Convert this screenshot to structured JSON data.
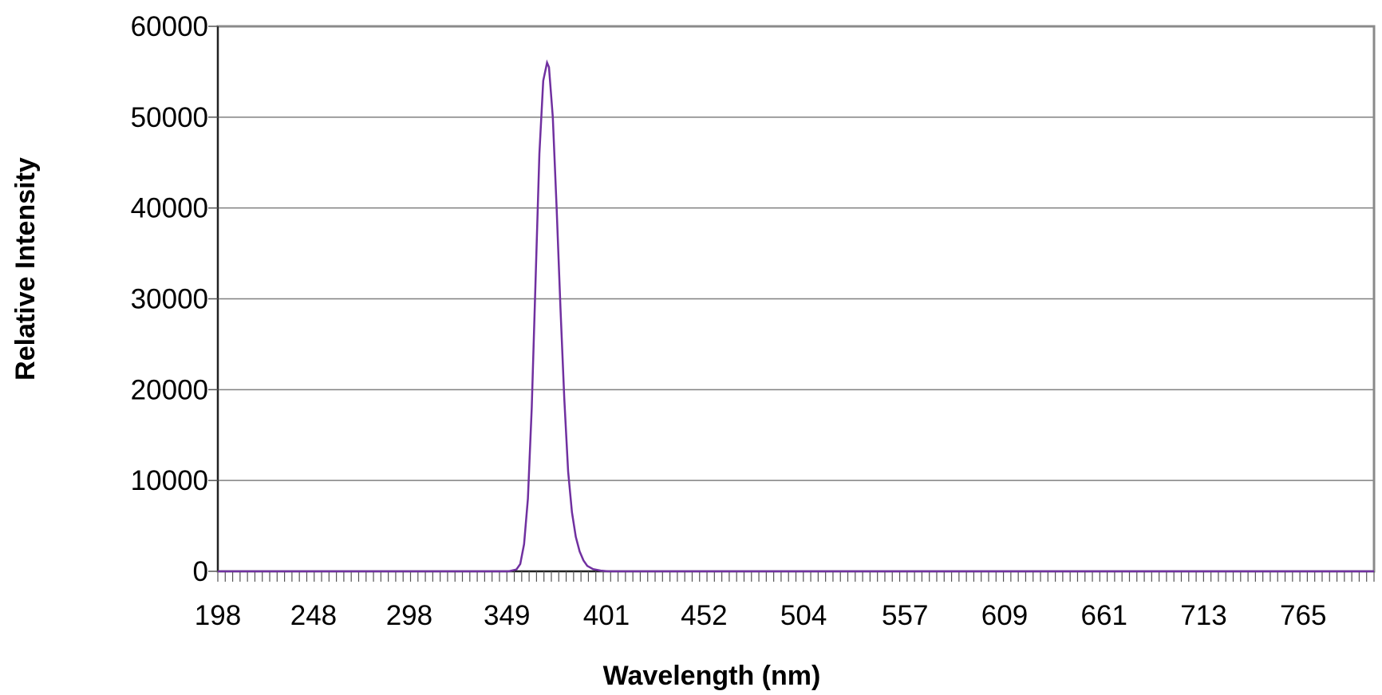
{
  "chart_data": {
    "type": "line",
    "title": "",
    "xlabel": "Wavelength (nm)",
    "ylabel": "Relative Intensity",
    "xlim": [
      198,
      802
    ],
    "ylim": [
      0,
      60000
    ],
    "grid": true,
    "legend": "none",
    "x_tick_labels": [
      "198",
      "248",
      "298",
      "349",
      "401",
      "452",
      "504",
      "557",
      "609",
      "661",
      "713",
      "765"
    ],
    "y_tick_labels": [
      "0",
      "10000",
      "20000",
      "30000",
      "40000",
      "50000",
      "60000"
    ],
    "line_color": "#7030a0",
    "series": [
      {
        "x": [
          198,
          300,
          350,
          354,
          356,
          358,
          360,
          362,
          364,
          366,
          368,
          370,
          371,
          373,
          375,
          377,
          379,
          381,
          383,
          385,
          387,
          389,
          391,
          394,
          398,
          402,
          500,
          802
        ],
        "y": [
          0,
          0,
          0,
          200,
          800,
          3000,
          8000,
          18000,
          32000,
          46000,
          54000,
          56000,
          55500,
          50000,
          40000,
          29000,
          19000,
          11000,
          6500,
          3800,
          2200,
          1200,
          600,
          250,
          80,
          0,
          0,
          0
        ]
      }
    ]
  }
}
